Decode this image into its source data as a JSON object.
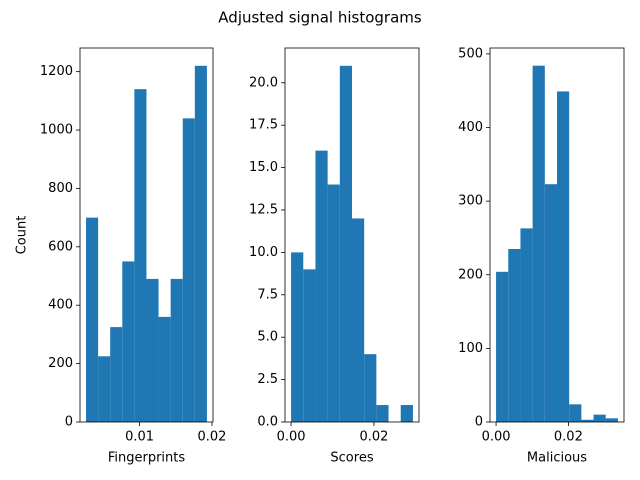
{
  "title": "Adjusted signal histograms",
  "chart_data": [
    {
      "type": "histogram",
      "xlabel": "Fingerprints",
      "ylabel": "Count",
      "color": "#1f77b4",
      "bins": [
        0.0026,
        0.00427,
        0.00594,
        0.00761,
        0.00928,
        0.01095,
        0.01262,
        0.01429,
        0.01596,
        0.01763,
        0.0193
      ],
      "values": [
        700,
        225,
        325,
        550,
        1140,
        490,
        360,
        490,
        1040,
        1220
      ],
      "xlim": [
        0.00177,
        0.02014
      ],
      "xticks": [
        0.01,
        0.02
      ],
      "ylim": [
        0,
        1281
      ],
      "yticks": [
        0,
        200,
        400,
        600,
        800,
        1000,
        1200
      ]
    },
    {
      "type": "histogram",
      "xlabel": "Scores",
      "color": "#1f77b4",
      "bins": [
        0,
        0.00294,
        0.00588,
        0.00882,
        0.01176,
        0.0147,
        0.01764,
        0.02058,
        0.02352,
        0.02646,
        0.0294
      ],
      "values": [
        10,
        9,
        16,
        14,
        21,
        12,
        4,
        1,
        0,
        1
      ],
      "xlim": [
        -0.00147,
        0.03087
      ],
      "xticks": [
        {
          "value": 0,
          "label": "0.00"
        },
        0.02
      ],
      "ylim": [
        0,
        22.05
      ],
      "yticks": [
        {
          "value": 0,
          "label": "0.0"
        },
        2.5,
        {
          "value": 5,
          "label": "5.0"
        },
        7.5,
        {
          "value": 10,
          "label": "10.0"
        },
        12.5,
        {
          "value": 15,
          "label": "15.0"
        },
        17.5,
        {
          "value": 20,
          "label": "20.0"
        }
      ]
    },
    {
      "type": "histogram",
      "xlabel": "Malicious",
      "color": "#1f77b4",
      "bins": [
        0,
        0.00337,
        0.00674,
        0.01011,
        0.01348,
        0.01685,
        0.02022,
        0.02359,
        0.02696,
        0.03033,
        0.0337
      ],
      "values": [
        204,
        235,
        263,
        484,
        323,
        449,
        24,
        3,
        10,
        5
      ],
      "xlim": [
        -0.00168,
        0.03538
      ],
      "xticks": [
        {
          "value": 0,
          "label": "0.00"
        },
        0.02
      ],
      "ylim": [
        0,
        508
      ],
      "yticks": [
        0,
        100,
        200,
        300,
        400,
        500
      ]
    }
  ]
}
